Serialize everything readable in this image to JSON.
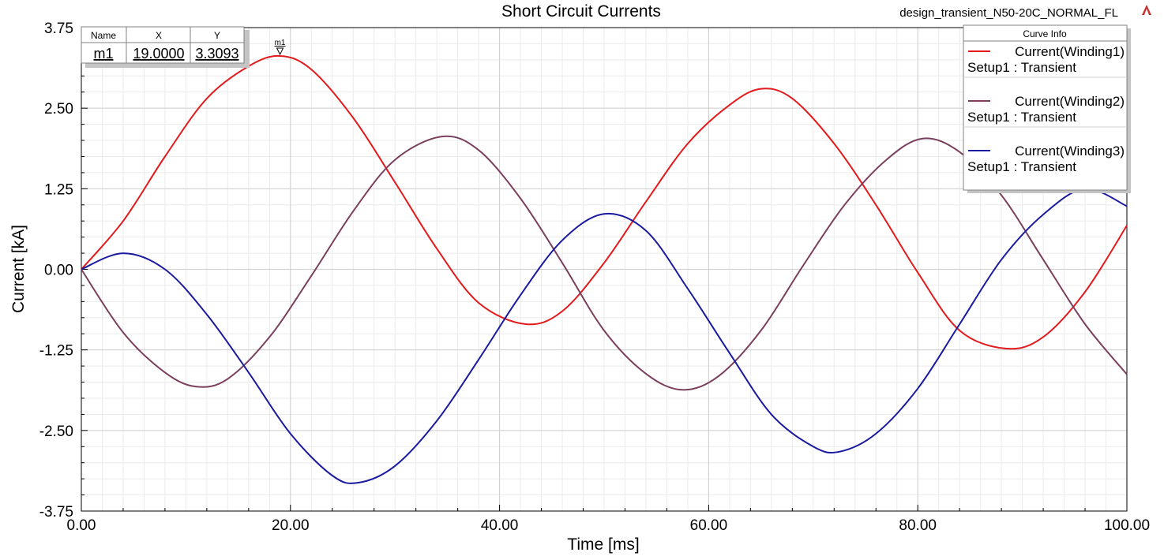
{
  "header": {
    "design_name": "design_transient_N50-20C_NORMAL_FL",
    "logo_icon": "ansys-logo-icon"
  },
  "chart_data": {
    "type": "line",
    "title": "Short Circuit Currents",
    "xlabel": "Time [ms]",
    "ylabel": "Current [kA]",
    "xlim": [
      0,
      100
    ],
    "ylim": [
      -3.75,
      3.75
    ],
    "x_ticks": [
      "0.00",
      "20.00",
      "40.00",
      "60.00",
      "80.00",
      "100.00"
    ],
    "y_ticks": [
      "3.75",
      "2.50",
      "1.25",
      "0.00",
      "-1.25",
      "-2.50",
      "-3.75"
    ],
    "grid": true,
    "legend_position": "top-right",
    "legend_title": "Curve Info",
    "series": [
      {
        "name": "Current(Winding1)",
        "setup": "Setup1 : Transient",
        "color": "#e31a1c",
        "x": [
          0,
          4,
          8,
          12,
          16,
          19,
          22,
          26,
          30,
          34,
          38,
          42.5,
          46,
          50,
          54,
          58,
          62,
          65,
          68,
          72,
          76,
          80,
          84,
          88.5,
          92,
          96,
          100
        ],
        "y": [
          0,
          0.75,
          1.75,
          2.65,
          3.15,
          3.31,
          3.1,
          2.35,
          1.35,
          0.32,
          -0.52,
          -0.85,
          -0.65,
          0.1,
          1.05,
          1.95,
          2.55,
          2.8,
          2.65,
          1.95,
          1.0,
          -0.05,
          -0.95,
          -1.23,
          -1.05,
          -0.35,
          0.68
        ]
      },
      {
        "name": "Current(Winding2)",
        "setup": "Setup1 : Transient",
        "color": "#7b3f5e",
        "x": [
          0,
          4,
          8,
          11,
          14,
          18,
          22,
          26,
          30,
          34.5,
          38,
          42,
          46,
          50,
          54,
          57.5,
          61,
          65,
          69,
          73,
          77,
          80.5,
          84,
          88,
          92,
          96,
          100
        ],
        "y": [
          0,
          -0.98,
          -1.6,
          -1.82,
          -1.7,
          -1.05,
          -0.1,
          0.9,
          1.7,
          2.06,
          1.85,
          1.1,
          0.1,
          -0.95,
          -1.62,
          -1.87,
          -1.65,
          -0.95,
          0.05,
          1.0,
          1.7,
          2.03,
          1.82,
          1.15,
          0.15,
          -0.85,
          -1.63
        ]
      },
      {
        "name": "Current(Winding3)",
        "setup": "Setup1 : Transient",
        "color": "#1a1aa0",
        "x": [
          0,
          4,
          8,
          12,
          16,
          20,
          24,
          26.5,
          30,
          34,
          38,
          42,
          46,
          50,
          54,
          58,
          62,
          66,
          70,
          72.5,
          76,
          80,
          84,
          88,
          92,
          96,
          100
        ],
        "y": [
          0,
          0.25,
          0.0,
          -0.7,
          -1.6,
          -2.55,
          -3.2,
          -3.31,
          -3.05,
          -2.35,
          -1.4,
          -0.4,
          0.45,
          0.86,
          0.6,
          -0.3,
          -1.3,
          -2.25,
          -2.75,
          -2.83,
          -2.55,
          -1.85,
          -0.85,
          0.15,
          0.85,
          1.25,
          0.98
        ]
      }
    ],
    "marker": {
      "headers": [
        "Name",
        "X",
        "Y"
      ],
      "name": "m1",
      "x": "19.0000",
      "y": "3.3093",
      "x_value": 19.0,
      "y_value": 3.3093
    }
  }
}
